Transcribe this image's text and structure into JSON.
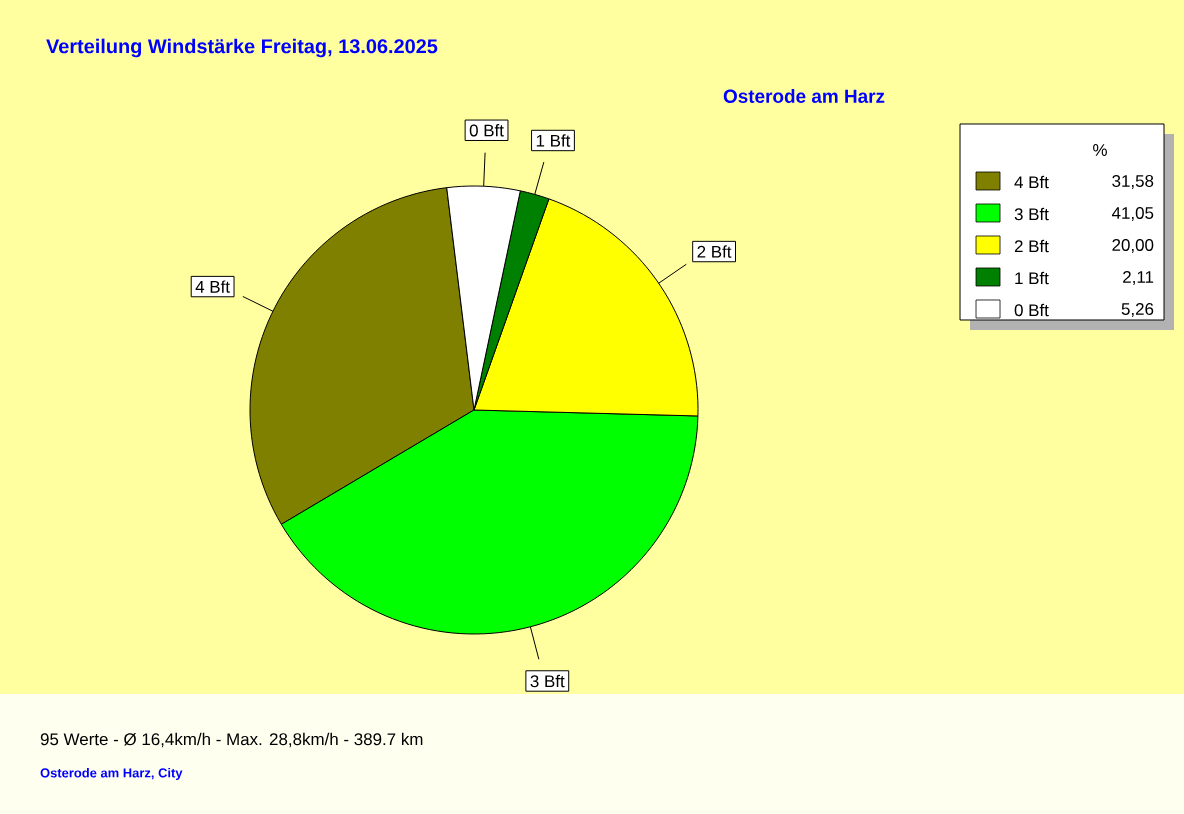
{
  "chart_data": {
    "type": "pie",
    "title": "Verteilung Windstärke  Freitag, 13.06.2025",
    "subtitle": "Osterode am Harz",
    "legend_title": "%",
    "legend": "top right",
    "categories": [
      "4 Bft",
      "3 Bft",
      "2 Bft",
      "1 Bft",
      "0 Bft"
    ],
    "values": [
      31.58,
      41.05,
      20.0,
      2.11,
      5.26
    ],
    "value_labels": [
      "31,58",
      "41,05",
      "20,00",
      "2,11",
      "5,26"
    ],
    "colors": [
      "#808000",
      "#00ff00",
      "#ffff00",
      "#008000",
      "#ffffff"
    ],
    "annotations": [
      "95 Werte  -  Ø 16,4km/h  -  Max. 28,8km/h  -  389.7 km",
      "Osterode am Harz, City"
    ]
  }
}
